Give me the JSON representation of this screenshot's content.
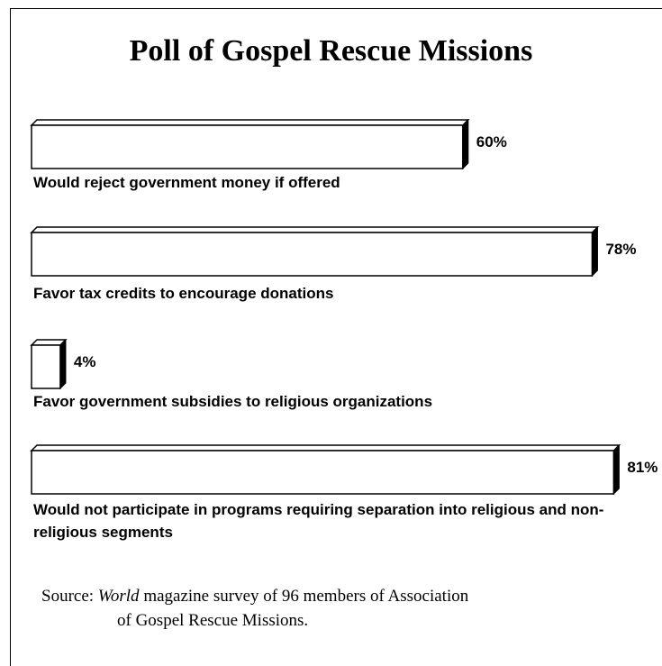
{
  "chart_data": {
    "type": "bar",
    "orientation": "horizontal",
    "title": "Poll of Gospel Rescue Missions",
    "categories": [
      "Would reject government money if offered",
      "Favor tax credits to encourage donations",
      "Favor government subsidies to religious organizations",
      "Would not participate in programs requiring separation into religious and non-religious segments"
    ],
    "values": [
      60,
      78,
      4,
      81
    ],
    "value_labels": [
      "60%",
      "78%",
      "4%",
      "81%"
    ],
    "unit": "%",
    "xlim": [
      0,
      100
    ],
    "grid": false,
    "legend": "none"
  },
  "source": {
    "prefix": "Source:",
    "publication": "World",
    "line1_rest": "magazine survey of 96 members of Association",
    "line2": "of Gospel Rescue Missions."
  }
}
